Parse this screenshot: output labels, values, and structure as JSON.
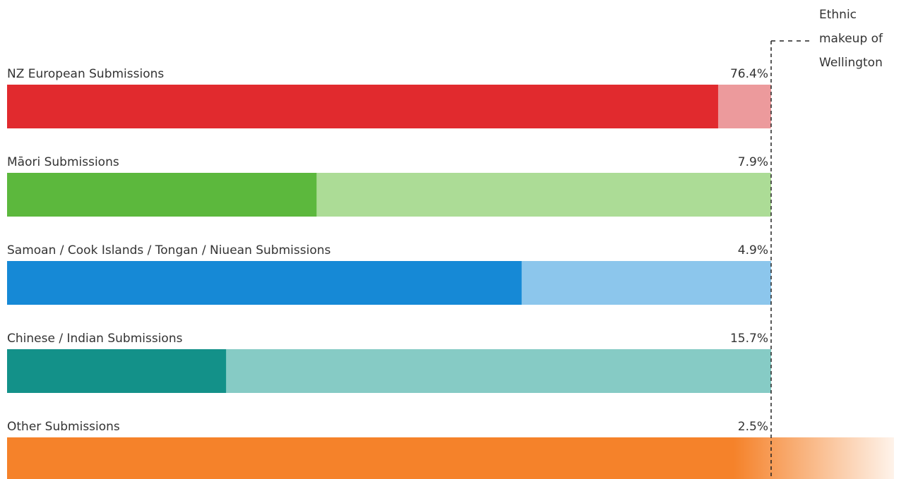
{
  "chart_data": {
    "type": "bar",
    "categories": [
      "NZ European Submissions",
      "Māori Submissions",
      "Samoan / Cook Islands / Tongan / Niuean Submissions",
      "Chinese / Indian Submissions",
      "Other Submissions"
    ],
    "series": [
      {
        "name": "Ethnic makeup of Wellington",
        "colors": [
          "#ec9a9c",
          "#acdc96",
          "#8cc6ec",
          "#86cbc5",
          "#f8c39a"
        ],
        "values": [
          76.4,
          7.9,
          4.9,
          15.7,
          2.5
        ],
        "value_labels": [
          "76.4%",
          "7.9%",
          "4.9%",
          "15.7%",
          "2.5%"
        ]
      },
      {
        "colors": [
          "#e12a2e",
          "#5cb83d",
          "#1689d6",
          "#139189",
          "#f5822a"
        ],
        "values": [
          71.1,
          3.2,
          3.3,
          4.5,
          2.9
        ]
      }
    ]
  }
}
